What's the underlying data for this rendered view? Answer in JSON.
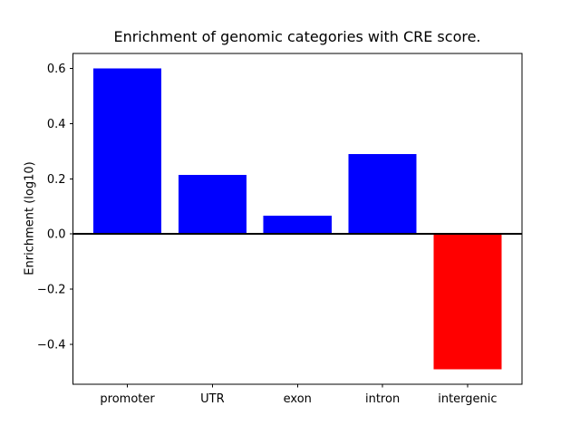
{
  "window": {
    "background": "#ffffff"
  },
  "chart_data": {
    "type": "bar",
    "title": "Enrichment of genomic categories with CRE score.",
    "ylabel": "Enrichment (log10)",
    "xlabel": "",
    "categories": [
      "promoter",
      "UTR",
      "exon",
      "intron",
      "intergenic"
    ],
    "values": [
      0.6,
      0.215,
      0.067,
      0.29,
      -0.49
    ],
    "bar_colors": [
      "#0000ff",
      "#0000ff",
      "#0000ff",
      "#0000ff",
      "#ff0000"
    ],
    "positive_color": "#0000ff",
    "negative_color": "#ff0000",
    "yticks": [
      0.6,
      0.4,
      0.2,
      0.0,
      -0.2,
      -0.4
    ],
    "ytick_labels": [
      "0.6",
      "0.4",
      "0.2",
      "0.0",
      "−0.2",
      "−0.4"
    ],
    "ylim": [
      -0.5445,
      0.6545
    ],
    "xlim": [
      -0.64,
      4.64
    ],
    "bar_width": 0.8,
    "grid": false,
    "legend": false,
    "zero_line_y": 0.0,
    "axis_color": "#000000",
    "text_color": "#000000",
    "background_color": "#ffffff"
  }
}
